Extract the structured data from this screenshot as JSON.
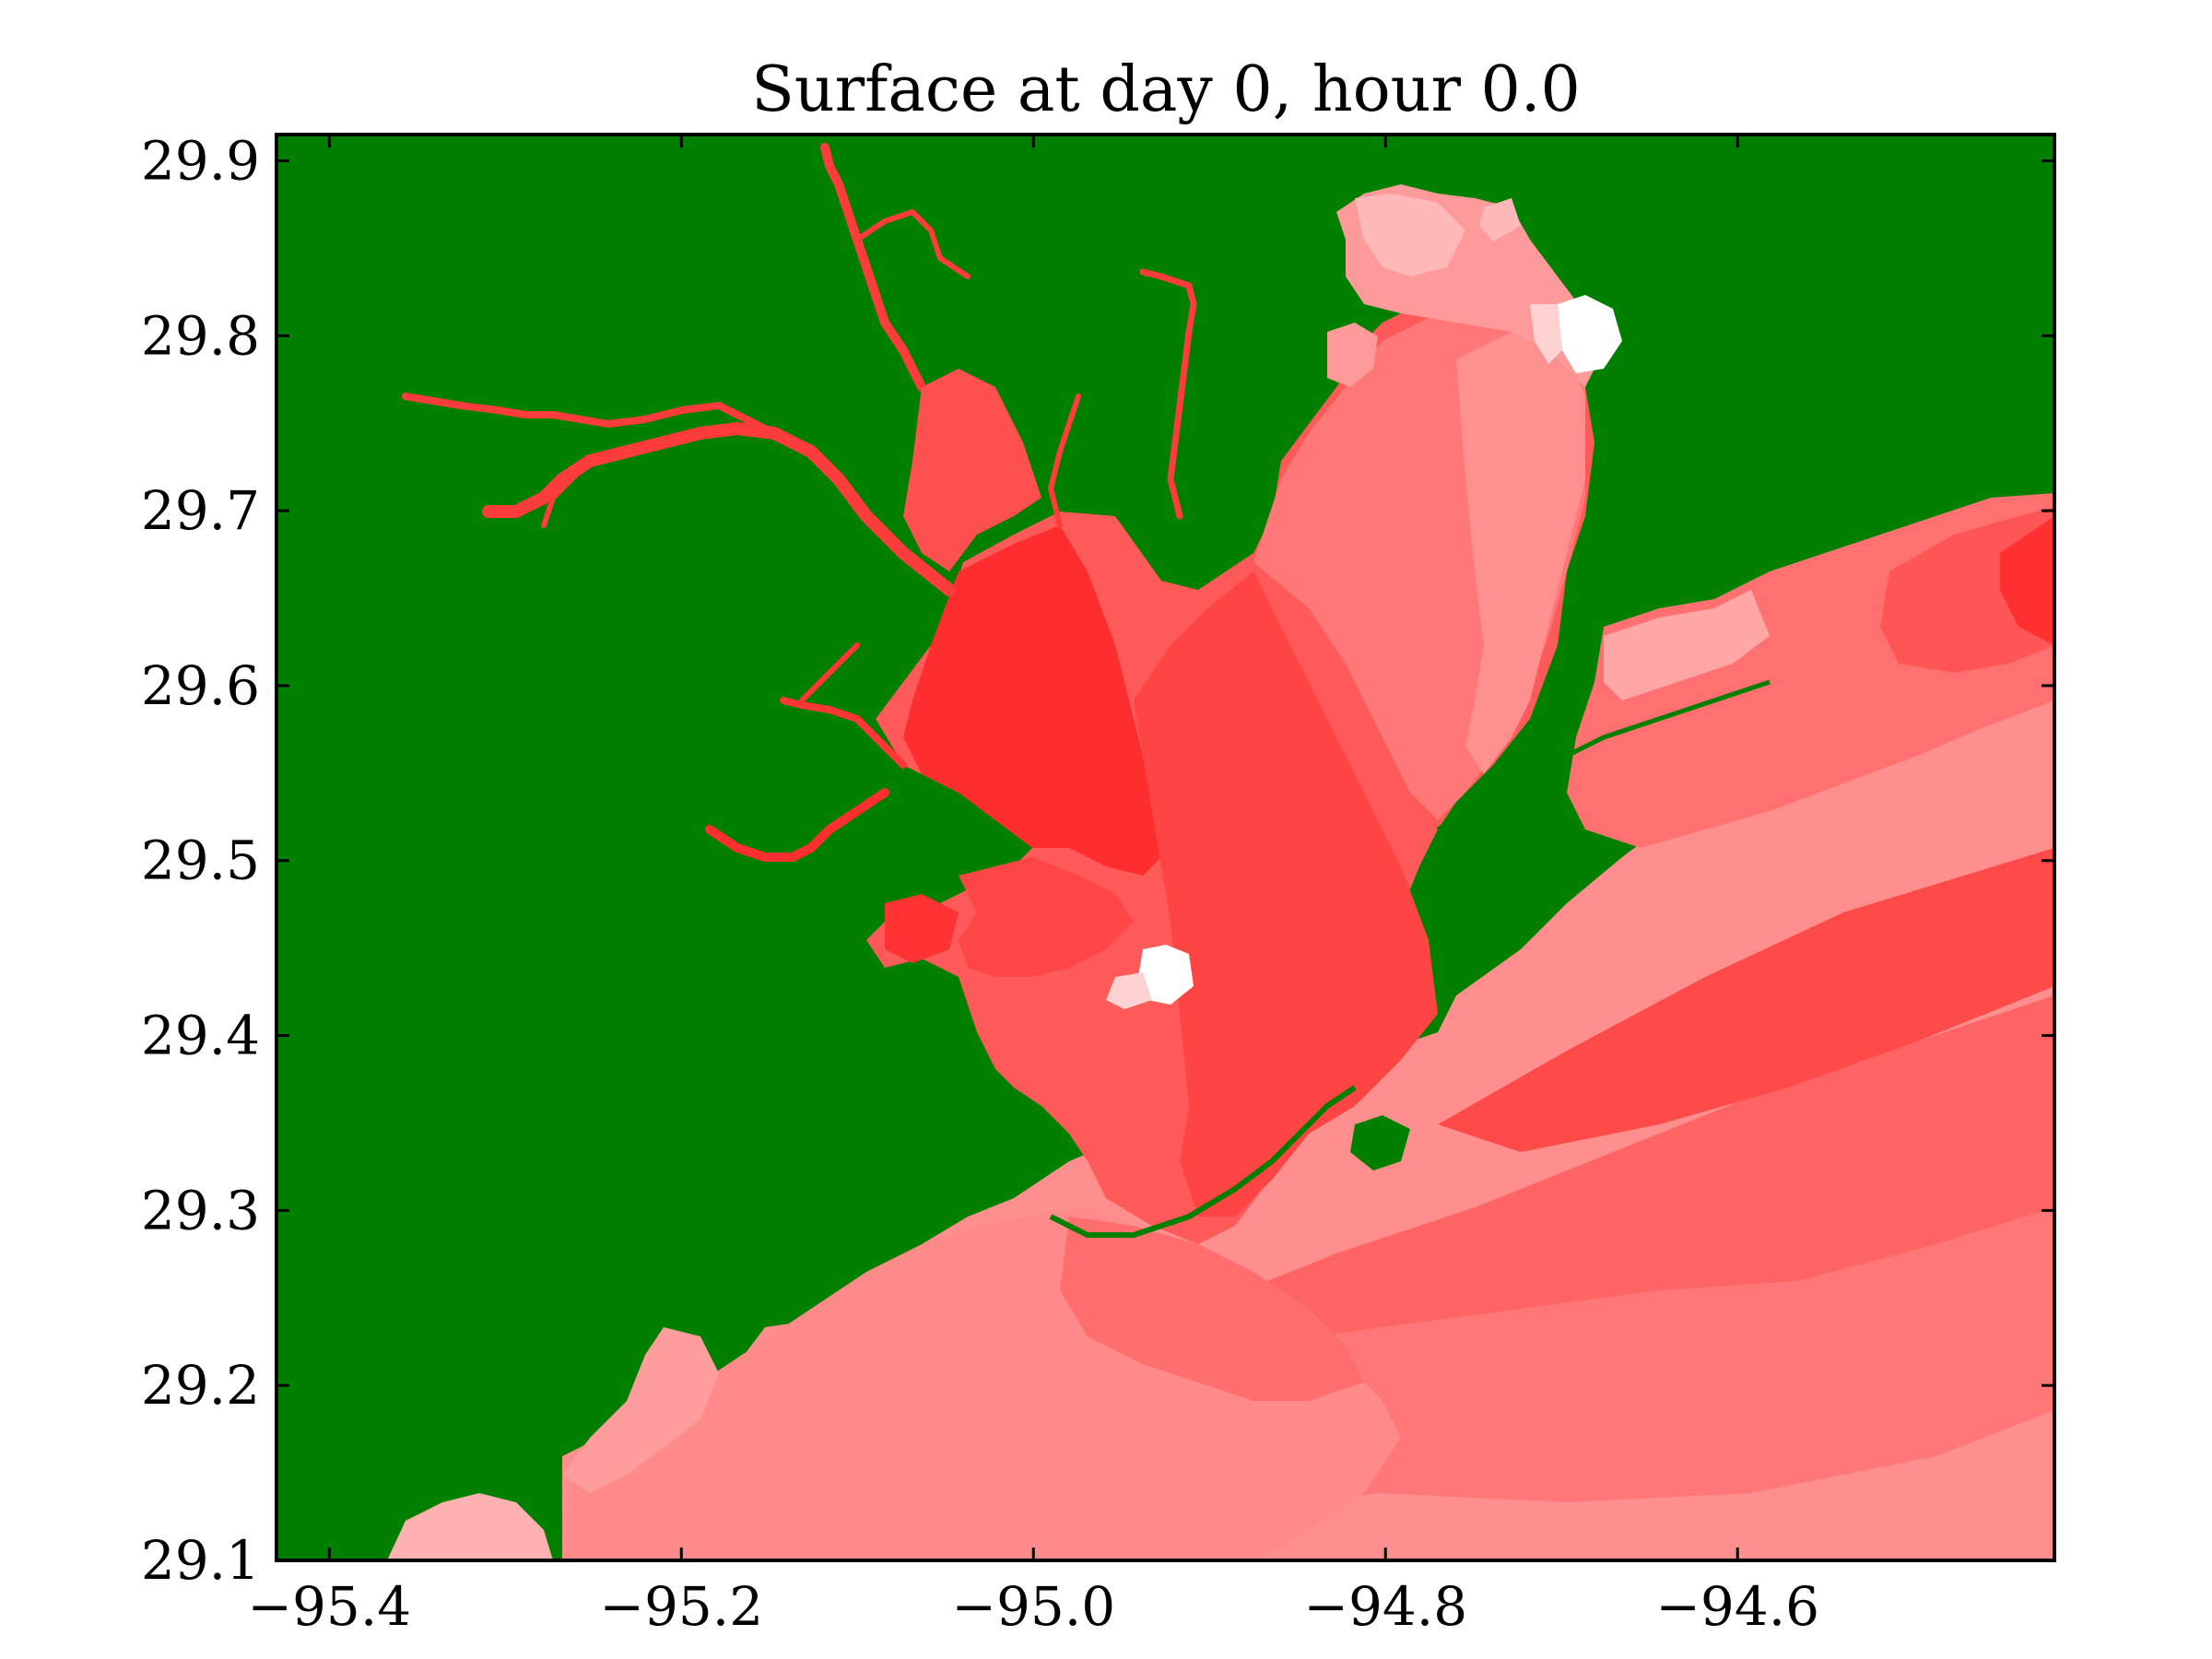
{
  "title": "Surface at day 0, hour 0.0",
  "colors": {
    "land": "#007f00",
    "background": "#ffffff",
    "frame": "#000000",
    "water_levels": [
      "#ff2b2b",
      "#ff4444",
      "#ff5e5e",
      "#ff7777",
      "#ff9090",
      "#ffb5b5",
      "#ffd8d8",
      "#ffffff"
    ]
  },
  "axes": {
    "xlim": [
      -95.43,
      -94.42
    ],
    "ylim": [
      29.1,
      29.915
    ],
    "xticks": [
      -95.4,
      -95.2,
      -95.0,
      -94.8,
      -94.6
    ],
    "yticks": [
      29.1,
      29.2,
      29.3,
      29.4,
      29.5,
      29.6,
      29.7,
      29.8,
      29.9
    ],
    "xtick_labels": [
      "−95.4",
      "−95.2",
      "−95.0",
      "−94.8",
      "−94.6"
    ],
    "ytick_labels": [
      "29.1",
      "29.2",
      "29.3",
      "29.4",
      "29.5",
      "29.6",
      "29.7",
      "29.8",
      "29.9"
    ]
  }
}
